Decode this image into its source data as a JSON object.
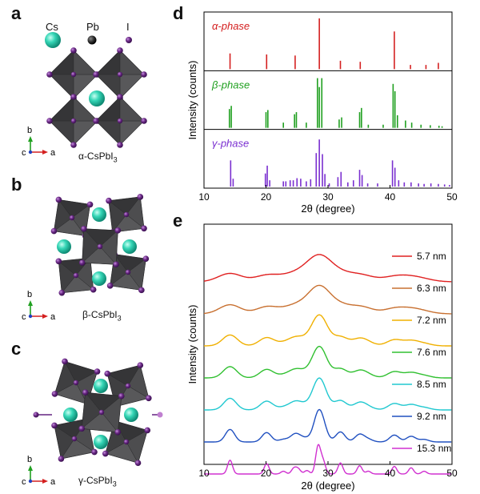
{
  "panels": {
    "a": "a",
    "b": "b",
    "c": "c",
    "d": "d",
    "e": "e"
  },
  "structure_legend": {
    "cs": "Cs",
    "pb": "Pb",
    "i": "I"
  },
  "structures": {
    "alpha": {
      "caption": "α-CsPbI",
      "sub": "3"
    },
    "beta": {
      "caption": "β-CsPbI",
      "sub": "3"
    },
    "gamma": {
      "caption": "γ-CsPbI",
      "sub": "3"
    },
    "axis_b": "b",
    "axis_c": "c",
    "axis_a": "a"
  },
  "colors": {
    "octahedron": "#4a4a4c",
    "cs": "#35d6b6",
    "iodine": "#6b2a86",
    "pb": "#2a2a2a",
    "alpha": "#d42020",
    "beta": "#20a020",
    "gamma": "#7a2fd0"
  },
  "chart_data": [
    {
      "type": "bar",
      "panel": "d",
      "ylabel": "Intensity (counts)",
      "xlabel": "2θ (degree)",
      "xlim": [
        10,
        50
      ],
      "xticks": [
        10,
        20,
        30,
        40,
        50
      ],
      "series": [
        {
          "name": "α-phase",
          "color": "#d42020",
          "peaks": [
            [
              14.2,
              0.3
            ],
            [
              20.1,
              0.28
            ],
            [
              24.7,
              0.26
            ],
            [
              28.6,
              0.97
            ],
            [
              32.0,
              0.16
            ],
            [
              35.2,
              0.14
            ],
            [
              40.7,
              0.72
            ],
            [
              43.3,
              0.08
            ],
            [
              45.8,
              0.08
            ],
            [
              47.8,
              0.12
            ]
          ]
        },
        {
          "name": "β-phase",
          "color": "#20a020",
          "peaks": [
            [
              14.1,
              0.36
            ],
            [
              14.4,
              0.42
            ],
            [
              20.0,
              0.3
            ],
            [
              20.3,
              0.34
            ],
            [
              22.8,
              0.1
            ],
            [
              24.6,
              0.26
            ],
            [
              24.9,
              0.3
            ],
            [
              26.5,
              0.1
            ],
            [
              28.3,
              0.95
            ],
            [
              28.6,
              0.78
            ],
            [
              29.0,
              0.95
            ],
            [
              31.8,
              0.16
            ],
            [
              32.2,
              0.2
            ],
            [
              35.1,
              0.3
            ],
            [
              35.4,
              0.38
            ],
            [
              36.5,
              0.06
            ],
            [
              38.9,
              0.06
            ],
            [
              40.5,
              0.84
            ],
            [
              40.8,
              0.7
            ],
            [
              41.2,
              0.24
            ],
            [
              42.5,
              0.14
            ],
            [
              43.5,
              0.1
            ],
            [
              45.0,
              0.06
            ],
            [
              46.5,
              0.05
            ],
            [
              47.9,
              0.04
            ],
            [
              48.4,
              0.03
            ]
          ]
        },
        {
          "name": "γ-phase",
          "color": "#7a2fd0",
          "peaks": [
            [
              14.3,
              0.5
            ],
            [
              14.7,
              0.15
            ],
            [
              19.9,
              0.25
            ],
            [
              20.2,
              0.4
            ],
            [
              20.6,
              0.12
            ],
            [
              22.8,
              0.1
            ],
            [
              23.2,
              0.1
            ],
            [
              23.9,
              0.12
            ],
            [
              24.4,
              0.12
            ],
            [
              25.0,
              0.16
            ],
            [
              25.6,
              0.15
            ],
            [
              26.5,
              0.1
            ],
            [
              27.2,
              0.14
            ],
            [
              28.1,
              0.64
            ],
            [
              28.6,
              0.9
            ],
            [
              29.1,
              0.62
            ],
            [
              29.5,
              0.24
            ],
            [
              30.2,
              0.06
            ],
            [
              31.6,
              0.18
            ],
            [
              32.1,
              0.28
            ],
            [
              33.2,
              0.08
            ],
            [
              34.1,
              0.12
            ],
            [
              35.1,
              0.32
            ],
            [
              35.5,
              0.22
            ],
            [
              36.4,
              0.06
            ],
            [
              38.0,
              0.06
            ],
            [
              40.4,
              0.5
            ],
            [
              40.8,
              0.36
            ],
            [
              41.4,
              0.12
            ],
            [
              42.3,
              0.08
            ],
            [
              43.4,
              0.08
            ],
            [
              44.6,
              0.06
            ],
            [
              45.5,
              0.05
            ],
            [
              46.6,
              0.06
            ],
            [
              47.8,
              0.05
            ],
            [
              48.8,
              0.04
            ],
            [
              49.6,
              0.03
            ]
          ]
        }
      ]
    },
    {
      "type": "line",
      "panel": "e",
      "ylabel": "Intensity (counts)",
      "xlabel": "2θ (degree)",
      "xlim": [
        10,
        50
      ],
      "xticks": [
        10,
        20,
        30,
        40,
        50
      ],
      "series": [
        {
          "name": "5.7 nm",
          "color": "#e02020",
          "width": 1.9
        },
        {
          "name": "6.3 nm",
          "color": "#c87030",
          "width": 1.7
        },
        {
          "name": "7.2 nm",
          "color": "#f0b000",
          "width": 1.2
        },
        {
          "name": "7.6 nm",
          "color": "#30c030",
          "width": 1.1
        },
        {
          "name": "8.5 nm",
          "color": "#20c8d0",
          "width": 1.0
        },
        {
          "name": "9.2 nm",
          "color": "#2050c0",
          "width": 0.75
        },
        {
          "name": "15.3 nm",
          "color": "#d030d0",
          "width": 0.4
        }
      ]
    }
  ]
}
